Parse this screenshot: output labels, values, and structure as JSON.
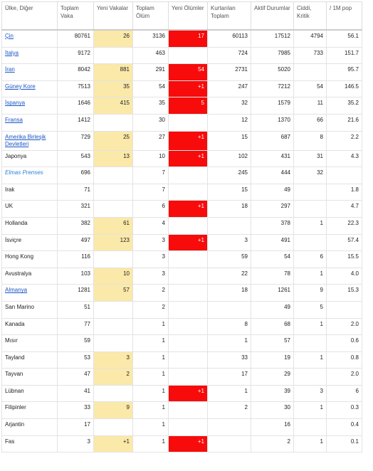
{
  "table": {
    "header": [
      "Ülke, Diğer",
      "Toplam Vaka",
      "Yeni Vakalar",
      "Toplam Ölüm",
      "Yeni Ölümler",
      "Kurtarılan Toplam",
      "Aktif Durumlar",
      "Ciddi, Kritik",
      "/ 1M pop"
    ],
    "rows": [
      [
        "Çin",
        "80761",
        "26",
        "3136",
        "17",
        "60113",
        "17512",
        "4794",
        "56.1"
      ],
      [
        "İtalya",
        "9172",
        null,
        "463",
        null,
        "724",
        "7985",
        "733",
        "151.7"
      ],
      [
        "İran",
        "8042",
        "881",
        "291",
        "54",
        "2731",
        "5020",
        null,
        "95.7"
      ],
      [
        "Güney Kore",
        "7513",
        "35",
        "54",
        "+1",
        "247",
        "7212",
        "54",
        "146.5"
      ],
      [
        "İspanya",
        "1646",
        "415",
        "35",
        "5",
        "32",
        "1579",
        "11",
        "35.2"
      ],
      [
        "Fransa",
        "1412",
        null,
        "30",
        null,
        "12",
        "1370",
        "66",
        "21.6"
      ],
      [
        "Amerika Birleşik Devletleri",
        "729",
        "25",
        "27",
        "+1",
        "15",
        "687",
        "8",
        "2.2"
      ],
      [
        "Japonya",
        "543",
        "13",
        "10",
        "+1",
        "102",
        "431",
        "31",
        "4.3"
      ],
      [
        "Elmas Prenses",
        "696",
        null,
        "7",
        null,
        "245",
        "444",
        "32",
        null
      ],
      [
        "Irak",
        "71",
        null,
        "7",
        null,
        "15",
        "49",
        null,
        "1.8"
      ],
      [
        "UK",
        "321",
        null,
        "6",
        "+1",
        "18",
        "297",
        null,
        "4.7"
      ],
      [
        "Hollanda",
        "382",
        "61",
        "4",
        null,
        null,
        "378",
        "1",
        "22.3"
      ],
      [
        "İsviçre",
        "497",
        "123",
        "3",
        "+1",
        "3",
        "491",
        null,
        "57.4"
      ],
      [
        "Hong Kong",
        "116",
        null,
        "3",
        null,
        "59",
        "54",
        "6",
        "15.5"
      ],
      [
        "Avustralya",
        "103",
        "10",
        "3",
        null,
        "22",
        "78",
        "1",
        "4.0"
      ],
      [
        "Almanya",
        "1281",
        "57",
        "2",
        null,
        "18",
        "1261",
        "9",
        "15.3"
      ],
      [
        "San Marino",
        "51",
        null,
        "2",
        null,
        null,
        "49",
        "5",
        null
      ],
      [
        "Kanada",
        "77",
        null,
        "1",
        null,
        "8",
        "68",
        "1",
        "2.0"
      ],
      [
        "Mısır",
        "59",
        null,
        "1",
        null,
        "1",
        "57",
        null,
        "0.6"
      ],
      [
        "Tayland",
        "53",
        "3",
        "1",
        null,
        "33",
        "19",
        "1",
        "0.8"
      ],
      [
        "Tayvan",
        "47",
        "2",
        "1",
        null,
        "17",
        "29",
        null,
        "2.0"
      ],
      [
        "Lübnan",
        "41",
        null,
        "1",
        "+1",
        "1",
        "39",
        "3",
        "6"
      ],
      [
        "Filipinler",
        "33",
        "9",
        "1",
        null,
        "2",
        "30",
        "1",
        "0.3"
      ],
      [
        "Arjantin",
        "17",
        null,
        "1",
        null,
        null,
        "16",
        null,
        "0.4"
      ],
      [
        "Fas",
        "3",
        "+1",
        "1",
        "+1",
        null,
        "2",
        "1",
        "0.1"
      ]
    ]
  }
}
